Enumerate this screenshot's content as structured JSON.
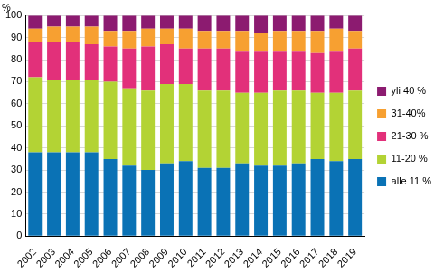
{
  "chart_data": {
    "type": "bar",
    "stacked": true,
    "ylabel": "%",
    "categories": [
      "2002",
      "2003",
      "2004",
      "2005",
      "2006",
      "2007",
      "2008",
      "2009",
      "2010",
      "2011",
      "2012",
      "2013",
      "2014",
      "2015",
      "2016",
      "2017",
      "2018",
      "2019"
    ],
    "series": [
      {
        "name": "alle 11 %",
        "color": "#0a72b5",
        "values": [
          38,
          38,
          38,
          38,
          35,
          32,
          30,
          33,
          34,
          31,
          31,
          33,
          32,
          32,
          33,
          35,
          34,
          35
        ]
      },
      {
        "name": "11-20 %",
        "color": "#b3d334",
        "values": [
          34,
          33,
          33,
          33,
          35,
          35,
          36,
          36,
          35,
          35,
          35,
          32,
          33,
          34,
          33,
          30,
          31,
          31
        ]
      },
      {
        "name": "21-30 %",
        "color": "#e2307a",
        "values": [
          16,
          17,
          17,
          16,
          16,
          18,
          20,
          18,
          16,
          19,
          19,
          19,
          19,
          18,
          18,
          18,
          19,
          19
        ]
      },
      {
        "name": "31-40%",
        "color": "#f7a031",
        "values": [
          6,
          7,
          7,
          8,
          7,
          8,
          8,
          7,
          9,
          8,
          8,
          9,
          8,
          9,
          9,
          10,
          10,
          8
        ]
      },
      {
        "name": "yli 40 %",
        "color": "#8c1b70",
        "values": [
          6,
          5,
          5,
          5,
          7,
          7,
          6,
          6,
          6,
          7,
          7,
          7,
          8,
          7,
          7,
          7,
          6,
          7
        ]
      }
    ],
    "ylim": [
      0,
      100
    ],
    "yticks": [
      0,
      10,
      20,
      30,
      40,
      50,
      60,
      70,
      80,
      90,
      100
    ],
    "grid": true,
    "legend": "right"
  }
}
